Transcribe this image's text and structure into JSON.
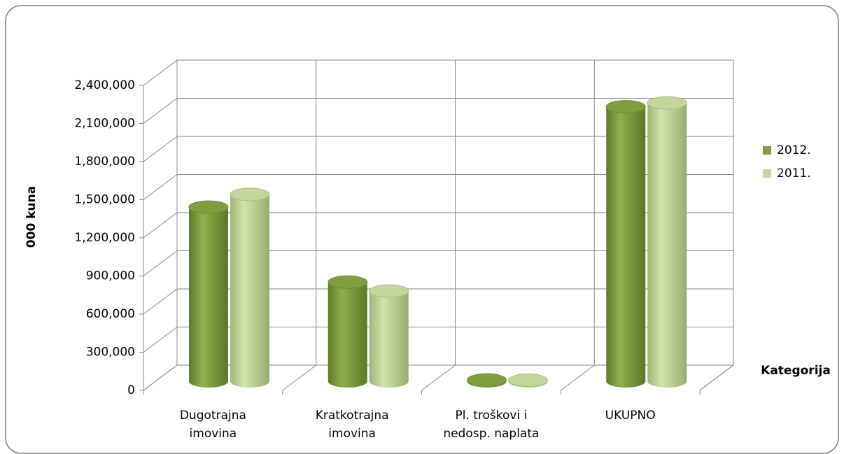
{
  "chart_data": {
    "type": "bar3d-cylinder",
    "y_label": "000 kuna",
    "x_label": "Kategorija",
    "categories": [
      [
        "Dugotrajna",
        "imovina"
      ],
      [
        "Kratkotrajna",
        "imovina"
      ],
      [
        "Pl. troškovi i",
        "nedosp. naplata"
      ],
      [
        "UKUPNO"
      ]
    ],
    "series": [
      {
        "name": "2012.",
        "color": "#7f9f3f",
        "values": [
          1370000,
          780000,
          10000,
          2160000
        ]
      },
      {
        "name": "2011.",
        "color": "#c3d69b",
        "values": [
          1470000,
          710000,
          8000,
          2190000
        ]
      }
    ],
    "ylim": [
      0,
      2400000
    ],
    "yticks": [
      0,
      {
        "value": 300000,
        "label": "300,000"
      },
      {
        "value": 600000,
        "label": "600,000"
      },
      {
        "value": 900000,
        "label": "900,000"
      },
      {
        "value": 1200000,
        "label": "1,200,000"
      },
      {
        "value": 1500000,
        "label": "1,500,000"
      },
      {
        "value": 1800000,
        "label": "1,800,000"
      },
      {
        "value": 2100000,
        "label": "2,100,000"
      },
      {
        "value": 2400000,
        "label": "2,400,000"
      }
    ],
    "grid": true,
    "legend": "right"
  }
}
